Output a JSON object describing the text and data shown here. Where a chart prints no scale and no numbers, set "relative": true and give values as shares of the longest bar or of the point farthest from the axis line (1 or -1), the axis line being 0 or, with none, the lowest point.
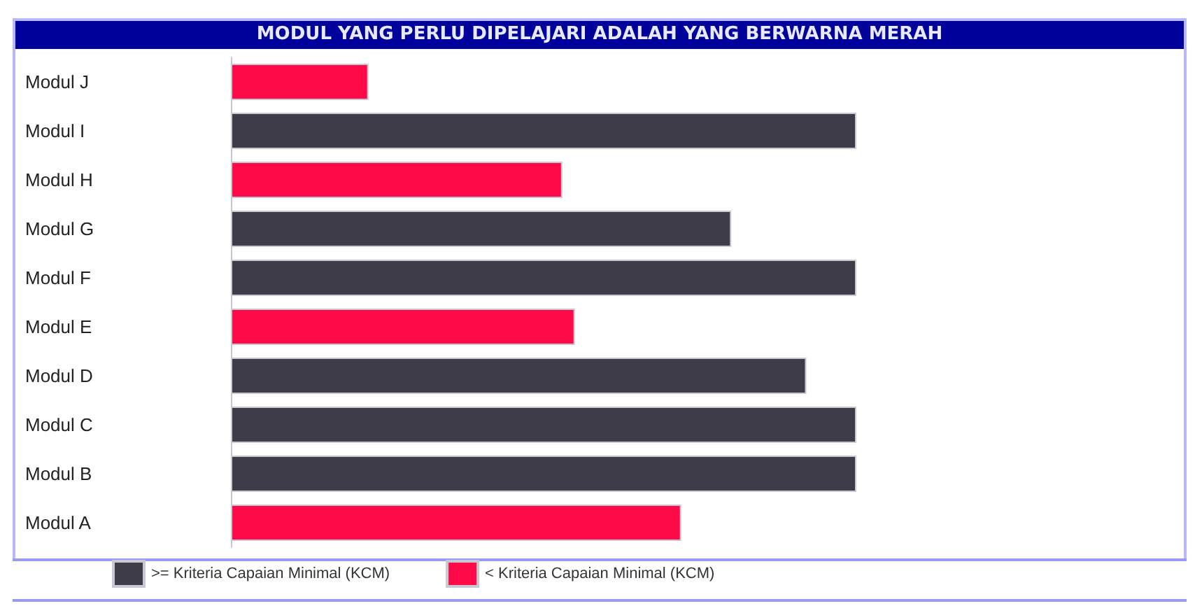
{
  "chart_data": {
    "type": "bar",
    "orientation": "horizontal",
    "relative": true,
    "title": "MODUL YANG PERLU DIPELAJARI ADALAH YANG BERWARNA MERAH",
    "categories": [
      "Modul J",
      "Modul I",
      "Modul H",
      "Modul G",
      "Modul F",
      "Modul E",
      "Modul D",
      "Modul C",
      "Modul B",
      "Modul A"
    ],
    "series": [
      {
        "name": ">= Kriteria Capaian Minimal (KCM)",
        "color": "#3d3c48",
        "values": [
          null,
          1,
          null,
          0.8,
          1,
          null,
          0.92,
          1,
          1,
          null
        ]
      },
      {
        "name": "< Kriteria Capaian Minimal (KCM)",
        "color": "#ff0a48",
        "values": [
          0.22,
          null,
          0.53,
          null,
          null,
          0.55,
          null,
          null,
          null,
          0.72
        ]
      }
    ],
    "legend": "bottom"
  }
}
